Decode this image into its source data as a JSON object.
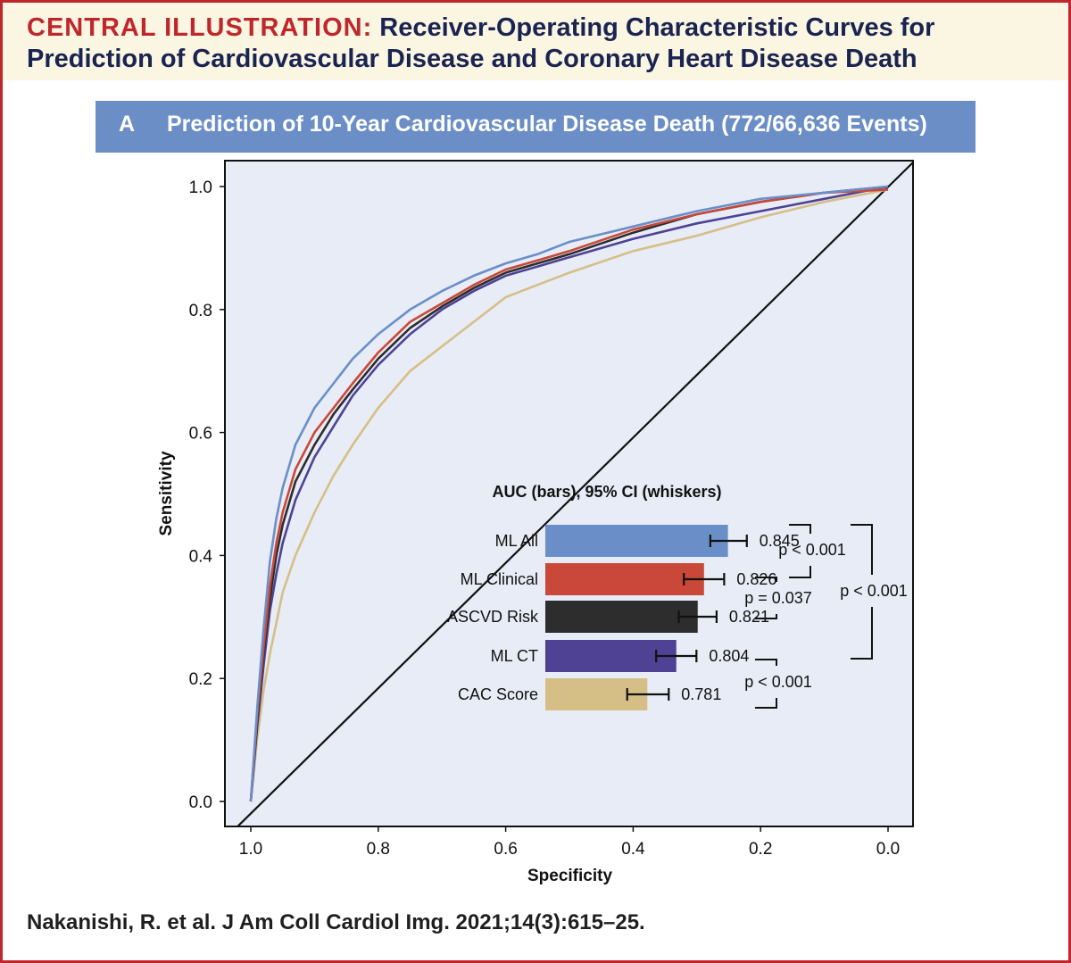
{
  "header": {
    "lead": "CENTRAL ILLUSTRATION:",
    "title_rest": " Receiver-Operating Characteristic Curves for",
    "title_line2": "Prediction of Cardiovascular Disease and Coronary Heart Disease Death"
  },
  "panel": {
    "letter": "A",
    "title": "Prediction of 10-Year Cardiovascular Disease Death (772/66,636 Events)"
  },
  "citation": "Nakanishi, R. et al. J Am Coll Cardiol Img. 2021;14(3):615–25.",
  "chart_data": {
    "type": "line",
    "xlabel": "Specificity",
    "ylabel": "Sensitivity",
    "xlim": [
      1.0,
      0.0
    ],
    "ylim": [
      0.0,
      1.0
    ],
    "x_ticks": [
      "1.0",
      "0.8",
      "0.6",
      "0.4",
      "0.2",
      "0.0"
    ],
    "y_ticks": [
      "0.0",
      "0.2",
      "0.4",
      "0.6",
      "0.8",
      "1.0"
    ],
    "background": "#e7ecf6",
    "series": [
      {
        "name": "CAC Score",
        "color": "#d6bf86",
        "specificity": [
          1.0,
          0.99,
          0.98,
          0.97,
          0.96,
          0.95,
          0.93,
          0.9,
          0.87,
          0.84,
          0.8,
          0.75,
          0.7,
          0.65,
          0.6,
          0.55,
          0.5,
          0.4,
          0.3,
          0.2,
          0.1,
          0.0
        ],
        "sensitivity": [
          0.0,
          0.1,
          0.18,
          0.24,
          0.29,
          0.34,
          0.4,
          0.47,
          0.53,
          0.58,
          0.64,
          0.7,
          0.74,
          0.78,
          0.82,
          0.84,
          0.86,
          0.895,
          0.92,
          0.95,
          0.975,
          0.995
        ]
      },
      {
        "name": "ML CT",
        "color": "#4f4295",
        "specificity": [
          1.0,
          0.99,
          0.98,
          0.97,
          0.96,
          0.95,
          0.93,
          0.9,
          0.87,
          0.84,
          0.8,
          0.75,
          0.7,
          0.65,
          0.6,
          0.55,
          0.5,
          0.4,
          0.3,
          0.2,
          0.1,
          0.0
        ],
        "sensitivity": [
          0.0,
          0.12,
          0.22,
          0.31,
          0.37,
          0.42,
          0.49,
          0.56,
          0.61,
          0.66,
          0.71,
          0.76,
          0.8,
          0.83,
          0.855,
          0.87,
          0.885,
          0.915,
          0.94,
          0.96,
          0.98,
          1.0
        ]
      },
      {
        "name": "ASCVD Risk",
        "color": "#2d2d2d",
        "specificity": [
          1.0,
          0.99,
          0.98,
          0.97,
          0.96,
          0.95,
          0.93,
          0.9,
          0.87,
          0.84,
          0.8,
          0.75,
          0.7,
          0.65,
          0.6,
          0.55,
          0.5,
          0.4,
          0.3,
          0.2,
          0.1,
          0.0
        ],
        "sensitivity": [
          0.0,
          0.13,
          0.24,
          0.33,
          0.4,
          0.45,
          0.52,
          0.58,
          0.63,
          0.67,
          0.72,
          0.77,
          0.805,
          0.835,
          0.86,
          0.875,
          0.89,
          0.925,
          0.955,
          0.975,
          0.99,
          1.0
        ]
      },
      {
        "name": "ML Clinical",
        "color": "#c9483a",
        "specificity": [
          1.0,
          0.99,
          0.98,
          0.97,
          0.96,
          0.95,
          0.93,
          0.9,
          0.87,
          0.84,
          0.8,
          0.75,
          0.7,
          0.65,
          0.6,
          0.55,
          0.5,
          0.4,
          0.3,
          0.2,
          0.1,
          0.0
        ],
        "sensitivity": [
          0.0,
          0.14,
          0.25,
          0.35,
          0.42,
          0.47,
          0.54,
          0.6,
          0.64,
          0.68,
          0.73,
          0.78,
          0.81,
          0.84,
          0.865,
          0.88,
          0.895,
          0.93,
          0.955,
          0.975,
          0.99,
          0.995
        ]
      },
      {
        "name": "ML All",
        "color": "#6a8fc8",
        "specificity": [
          1.0,
          0.99,
          0.98,
          0.97,
          0.96,
          0.95,
          0.93,
          0.9,
          0.87,
          0.84,
          0.8,
          0.75,
          0.7,
          0.65,
          0.6,
          0.55,
          0.5,
          0.4,
          0.3,
          0.2,
          0.1,
          0.0
        ],
        "sensitivity": [
          0.0,
          0.15,
          0.28,
          0.39,
          0.46,
          0.51,
          0.58,
          0.64,
          0.68,
          0.72,
          0.76,
          0.8,
          0.83,
          0.855,
          0.875,
          0.89,
          0.91,
          0.935,
          0.96,
          0.98,
          0.99,
          1.0
        ]
      }
    ],
    "diagonal": {
      "color": "#111111",
      "from": [
        1.02,
        -0.04
      ],
      "to": [
        -0.04,
        1.04
      ]
    },
    "inset": {
      "title": "AUC (bars), 95% CI (whiskers)",
      "xlim": [
        0.7,
        0.88
      ],
      "bars": [
        {
          "label": "ML All",
          "value": 0.845,
          "value_label": "0.845",
          "ci": [
            0.831,
            0.86
          ],
          "color": "#6a8fc8"
        },
        {
          "label": "ML Clinical",
          "value": 0.826,
          "value_label": "0.826",
          "ci": [
            0.81,
            0.842
          ],
          "color": "#c9483a"
        },
        {
          "label": "ASCVD Risk",
          "value": 0.821,
          "value_label": "0.821",
          "ci": [
            0.806,
            0.836
          ],
          "color": "#2d2d2d"
        },
        {
          "label": "ML CT",
          "value": 0.804,
          "value_label": "0.804",
          "ci": [
            0.788,
            0.82
          ],
          "color": "#4f4295"
        },
        {
          "label": "CAC Score",
          "value": 0.781,
          "value_label": "0.781",
          "ci": [
            0.765,
            0.798
          ],
          "color": "#d6bf86"
        }
      ],
      "comparisons": [
        {
          "between": [
            "ML All",
            "ML Clinical"
          ],
          "label": "p < 0.001"
        },
        {
          "between": [
            "ML Clinical",
            "ASCVD Risk"
          ],
          "label": "p = 0.037"
        },
        {
          "between": [
            "ML All",
            "ML CT"
          ],
          "label": "p < 0.001"
        },
        {
          "between": [
            "ML CT",
            "CAC Score"
          ],
          "label": "p < 0.001"
        }
      ]
    }
  }
}
